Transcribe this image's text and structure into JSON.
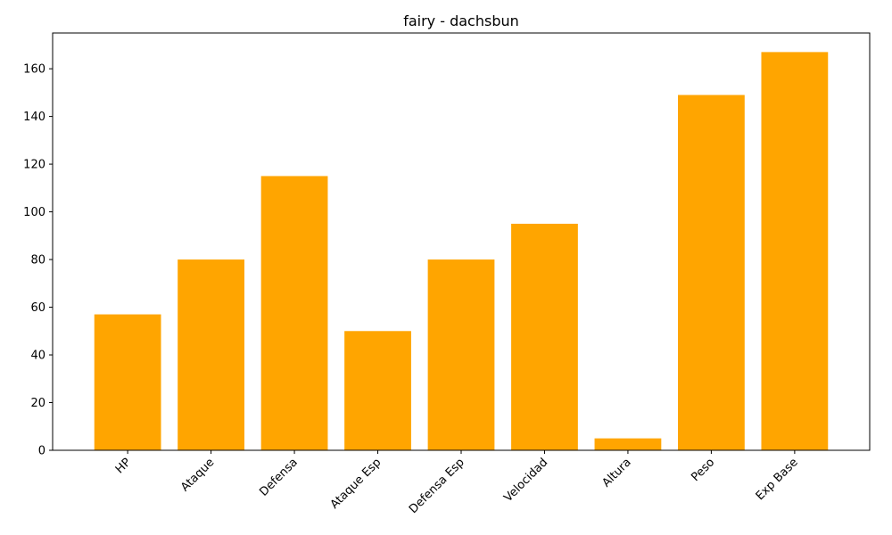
{
  "chart_data": {
    "type": "bar",
    "title": "fairy - dachsbun",
    "xlabel": "",
    "ylabel": "",
    "categories": [
      "HP",
      "Ataque",
      "Defensa",
      "Ataque Esp",
      "Defensa Esp",
      "Velocidad",
      "Altura",
      "Peso",
      "Exp Base"
    ],
    "values": [
      57,
      80,
      115,
      50,
      80,
      95,
      5,
      149,
      167
    ],
    "ylim": [
      0,
      175
    ],
    "yticks": [
      0,
      20,
      40,
      60,
      80,
      100,
      120,
      140,
      160
    ],
    "bar_color": "#FFA500",
    "grid": false,
    "legend": "none"
  }
}
